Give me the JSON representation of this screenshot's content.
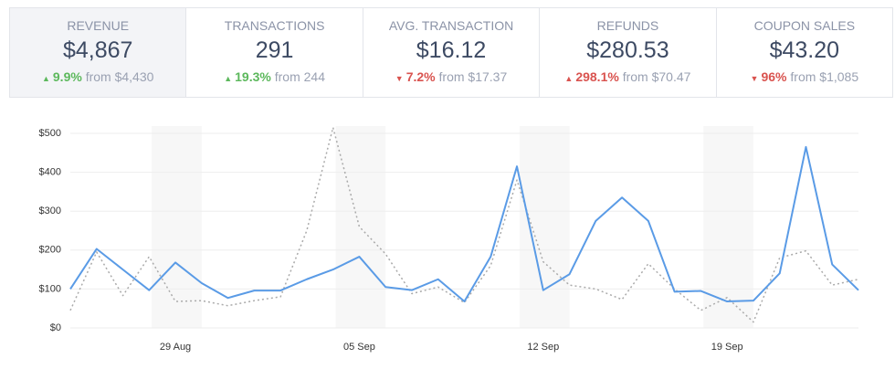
{
  "cards": [
    {
      "label": "REVENUE",
      "value": "$4,867",
      "direction": "up",
      "change": "9.9%",
      "from": "from $4,430",
      "selected": true
    },
    {
      "label": "TRANSACTIONS",
      "value": "291",
      "direction": "up",
      "change": "19.3%",
      "from": "from 244"
    },
    {
      "label": "AVG. TRANSACTION",
      "value": "$16.12",
      "direction": "down",
      "change": "7.2%",
      "from": "from $17.37"
    },
    {
      "label": "REFUNDS",
      "value": "$280.53",
      "direction": "up-bad",
      "change": "298.1%",
      "from": "from $70.47"
    },
    {
      "label": "COUPON SALES",
      "value": "$43.20",
      "direction": "down",
      "change": "96%",
      "from": "from $1,085"
    }
  ],
  "chart_data": {
    "type": "line",
    "categories": [
      null,
      null,
      null,
      null,
      "29 Aug",
      null,
      null,
      null,
      null,
      null,
      null,
      "05 Sep",
      null,
      null,
      null,
      null,
      null,
      null,
      "12 Sep",
      null,
      null,
      null,
      null,
      null,
      null,
      "19 Sep",
      null,
      null,
      null,
      null,
      null
    ],
    "series": [
      {
        "color": "#5a9be6",
        "dash": false,
        "values": [
          100,
          203,
          150,
          97,
          168,
          115,
          77,
          96,
          96,
          125,
          150,
          183,
          105,
          97,
          125,
          68,
          183,
          415,
          97,
          138,
          275,
          335,
          275,
          93,
          95,
          68,
          70,
          140,
          465,
          163,
          97
        ]
      },
      {
        "color": "#aaaaaa",
        "dash": true,
        "values": [
          45,
          195,
          83,
          183,
          68,
          70,
          57,
          70,
          80,
          250,
          515,
          260,
          190,
          88,
          105,
          65,
          160,
          380,
          170,
          110,
          100,
          73,
          165,
          100,
          45,
          78,
          15,
          180,
          198,
          110,
          125
        ]
      }
    ],
    "ylim": [
      0,
      500
    ],
    "yticks": [
      {
        "value": 0,
        "label": "$0"
      },
      {
        "value": 100,
        "label": "$100"
      },
      {
        "value": 200,
        "label": "$200"
      },
      {
        "value": 300,
        "label": "$300"
      },
      {
        "value": 400,
        "label": "$400"
      },
      {
        "value": 500,
        "label": "$500"
      }
    ],
    "grid": true
  }
}
